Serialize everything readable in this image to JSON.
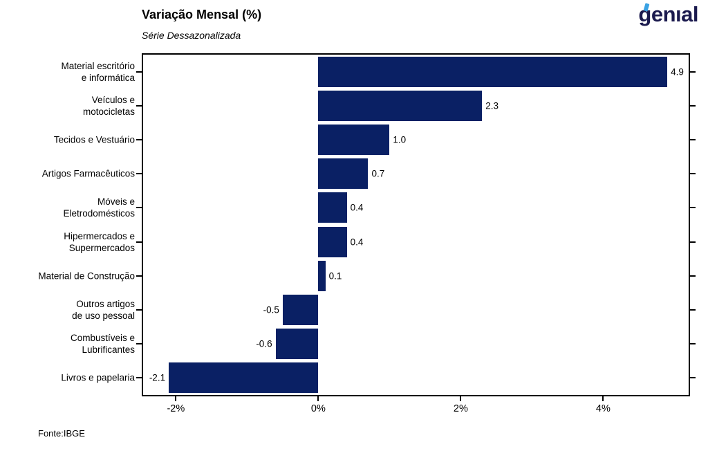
{
  "header": {
    "title": "Variação Mensal (%)",
    "subtitle": "Série Dessazonalizada",
    "logo_text": "genıal",
    "logo_color": "#1b1a4e",
    "logo_accent_color": "#3aa2e3"
  },
  "footer": {
    "source": "Fonte:IBGE"
  },
  "chart_data": {
    "type": "bar",
    "orientation": "horizontal",
    "title": "Variação Mensal (%)",
    "subtitle": "Série Dessazonalizada",
    "categories": [
      [
        "Material escritório",
        "e informática"
      ],
      [
        "Veículos e",
        "motocicletas"
      ],
      [
        "Tecidos e Vestuário"
      ],
      [
        "Artigos Farmacêuticos"
      ],
      [
        "Móveis e",
        "Eletrodomésticos"
      ],
      [
        "Hipermercados e",
        "Supermercados"
      ],
      [
        "Material de Construção"
      ],
      [
        "Outros artigos",
        "de uso pessoal"
      ],
      [
        "Combustíveis e",
        "Lubrificantes"
      ],
      [
        "Livros e papelaria"
      ]
    ],
    "values": [
      4.9,
      2.3,
      1.0,
      0.7,
      0.4,
      0.4,
      0.1,
      -0.5,
      -0.6,
      -2.1
    ],
    "value_labels": [
      "4.9",
      "2.3",
      "1.0",
      "0.7",
      "0.4",
      "0.4",
      "0.1",
      "-0.5",
      "-0.6",
      "-2.1"
    ],
    "bar_color": "#0A2064",
    "xlim": [
      -2.46,
      5.2
    ],
    "x_ticks": [
      -2,
      0,
      2,
      4
    ],
    "x_tick_labels": [
      "-2%",
      "0%",
      "2%",
      "4%"
    ],
    "grid": false,
    "legend": "none",
    "source": "Fonte:IBGE"
  }
}
